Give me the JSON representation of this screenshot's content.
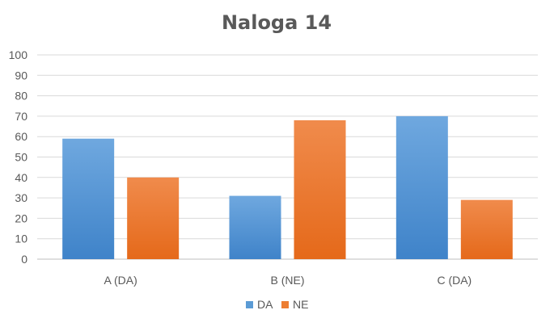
{
  "chart_data": {
    "type": "bar",
    "title": "Naloga 14",
    "categories": [
      "A (DA)",
      "B (NE)",
      "C (DA)"
    ],
    "series": [
      {
        "name": "DA",
        "values": [
          59,
          31,
          70
        ],
        "color": "#5b9bd5"
      },
      {
        "name": "NE",
        "values": [
          40,
          68,
          29
        ],
        "color": "#ed7d31"
      }
    ],
    "yticks": [
      "0",
      "10",
      "20",
      "30",
      "40",
      "50",
      "60",
      "70",
      "80",
      "90",
      "100"
    ],
    "ylim": [
      0,
      100
    ],
    "grid": true,
    "legend_position": "bottom"
  }
}
